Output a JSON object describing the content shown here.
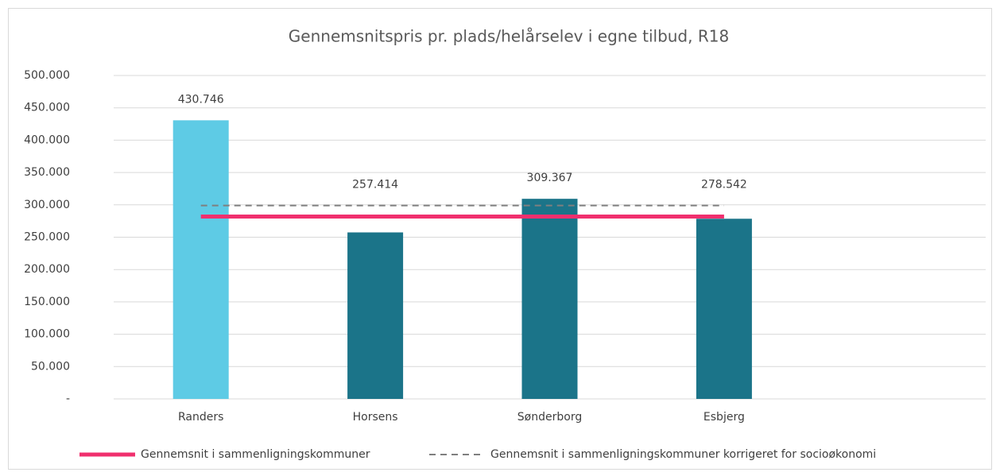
{
  "chart_data": {
    "type": "bar",
    "title": "Gennemsnitspris pr. plads/helårselev i egne tilbud, R18",
    "categories": [
      "Randers",
      "Horsens",
      "Sønderborg",
      "Esbjerg",
      null
    ],
    "values": [
      430746,
      257414,
      309367,
      278542,
      null
    ],
    "value_labels": [
      "430.746",
      "257.414",
      "309.367",
      "278.542",
      null
    ],
    "colors": [
      "#5ecbe5",
      "#1b7489",
      "#1b7489",
      "#1b7489",
      "#1b7489"
    ],
    "ylim": [
      0,
      500000
    ],
    "yticks": [
      {
        "value": 0,
        "label": "-"
      },
      {
        "value": 50000,
        "label": "50.000"
      },
      {
        "value": 100000,
        "label": "100.000"
      },
      {
        "value": 150000,
        "label": "150.000"
      },
      {
        "value": 200000,
        "label": "200.000"
      },
      {
        "value": 250000,
        "label": "250.000"
      },
      {
        "value": 300000,
        "label": "300.000"
      },
      {
        "value": 350000,
        "label": "350.000"
      },
      {
        "value": 400000,
        "label": "400.000"
      },
      {
        "value": 450000,
        "label": "450.000"
      },
      {
        "value": 500000,
        "label": "500.000"
      }
    ],
    "grid": true,
    "series": [
      {
        "name": "Gennemsnit i sammenligningskommuner",
        "color": "#f0306e",
        "style": "solid",
        "values": [
          282000,
          282000,
          282000,
          282000,
          null
        ]
      },
      {
        "name": "Gennemsnit i sammenligningskommuner korrigeret for socioøkonomi",
        "color": "#7f7f7f",
        "style": "dashed",
        "values": [
          299000,
          299000,
          299000,
          299000,
          null
        ]
      }
    ],
    "legend": "bottom"
  }
}
